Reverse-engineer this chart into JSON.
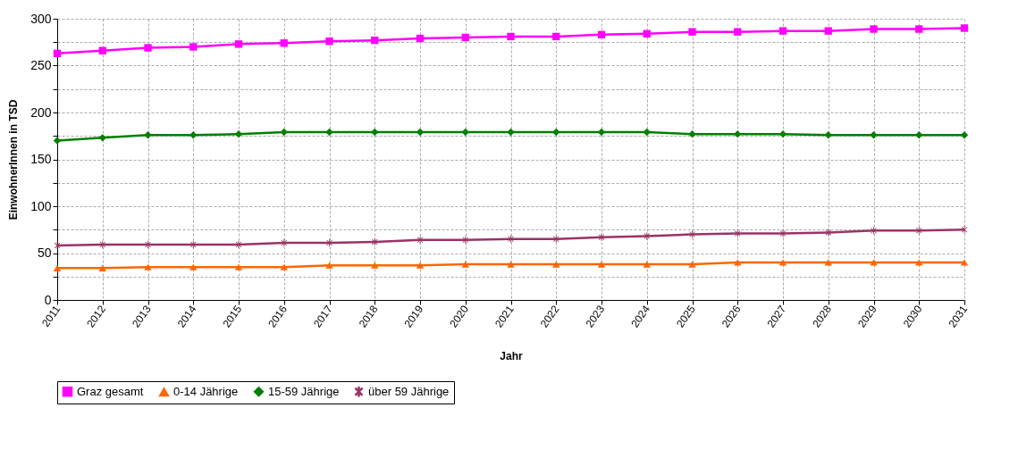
{
  "chart_data": {
    "type": "line",
    "xlabel": "Jahr",
    "ylabel": "EinwohnerInnen in TSD",
    "categories": [
      "2011",
      "2012",
      "2013",
      "2014",
      "2015",
      "2016",
      "2017",
      "2018",
      "2019",
      "2020",
      "2021",
      "2022",
      "2023",
      "2024",
      "2025",
      "2026",
      "2027",
      "2028",
      "2029",
      "2030",
      "2031"
    ],
    "series": [
      {
        "name": "Graz gesamt",
        "color": "#ff00ff",
        "marker": "square",
        "values": [
          263,
          266,
          269,
          270,
          273,
          274,
          276,
          277,
          279,
          280,
          281,
          281,
          283,
          284,
          286,
          286,
          287,
          287,
          289,
          289,
          290
        ]
      },
      {
        "name": "0-14 Jährige",
        "color": "#ff6600",
        "marker": "triangle",
        "values": [
          34,
          34,
          35,
          35,
          35,
          35,
          37,
          37,
          37,
          38,
          38,
          38,
          38,
          38,
          38,
          40,
          40,
          40,
          40,
          40,
          40
        ]
      },
      {
        "name": "15-59 Jährige",
        "color": "#008000",
        "marker": "diamond",
        "values": [
          170,
          173,
          176,
          176,
          177,
          179,
          179,
          179,
          179,
          179,
          179,
          179,
          179,
          179,
          177,
          177,
          177,
          176,
          176,
          176,
          176
        ]
      },
      {
        "name": "über 59 Jährige",
        "color": "#993366",
        "marker": "cross",
        "values": [
          58,
          59,
          59,
          59,
          59,
          61,
          61,
          62,
          64,
          64,
          65,
          65,
          67,
          68,
          70,
          71,
          71,
          72,
          74,
          74,
          75
        ]
      }
    ],
    "ylim": [
      0,
      300
    ],
    "yticks": [
      0,
      {
        "value": 25,
        "label": null
      },
      50,
      {
        "value": 75,
        "label": null
      },
      100,
      {
        "value": 125,
        "label": null
      },
      150,
      {
        "value": 175,
        "label": null
      },
      200,
      {
        "value": 225,
        "label": null
      },
      250,
      {
        "value": 275,
        "label": null
      },
      300
    ],
    "grid": true,
    "legend": "bottom"
  }
}
